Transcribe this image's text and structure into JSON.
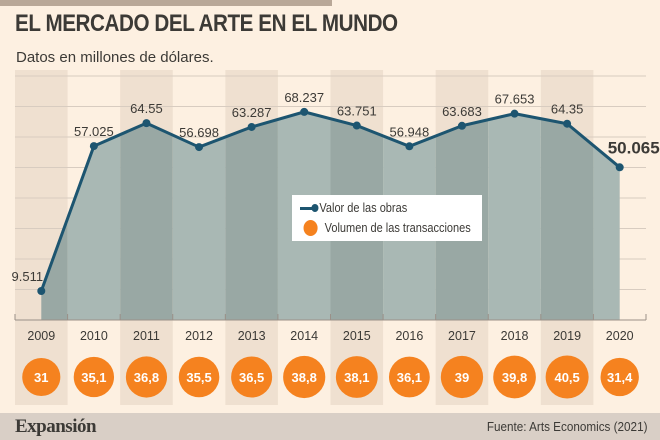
{
  "header": {
    "title": "EL MERCADO DEL ARTE EN EL MUNDO",
    "subtitle": "Datos en millones de dólares."
  },
  "legend": {
    "line_label": "Valor de las obras",
    "dot_label": "Volumen de las transacciones"
  },
  "footer": {
    "brand": "Expansión",
    "source": "Fuente: Arts Economics (2021)"
  },
  "colors": {
    "background": "#fdf0e1",
    "column_alt": "#efe0d0",
    "area": "#a9b8b4",
    "area_alt": "#99a8a4",
    "line": "#1d5570",
    "bubble": "#f5821f",
    "text": "#3c3a36"
  },
  "chart_data": {
    "type": "line",
    "title": "EL MERCADO DEL ARTE EN EL MUNDO",
    "subtitle": "Datos en millones de dólares.",
    "xlabel": "",
    "ylabel": "",
    "ylim": [
      0,
      80
    ],
    "grid": true,
    "legend_position": "center",
    "categories": [
      "2009",
      "2010",
      "2011",
      "2012",
      "2013",
      "2014",
      "2015",
      "2016",
      "2017",
      "2018",
      "2019",
      "2020"
    ],
    "series": [
      {
        "name": "Valor de las obras",
        "type": "area-line",
        "values": [
          9.511,
          57.025,
          64.55,
          56.698,
          63.287,
          68.237,
          63.751,
          56.948,
          63.683,
          67.653,
          64.35,
          50.065
        ],
        "labels": [
          "9.511",
          "57.025",
          "64.55",
          "56.698",
          "63.287",
          "68.237",
          "63.751",
          "56.948",
          "63.683",
          "67.653",
          "64.35",
          "50.065"
        ]
      },
      {
        "name": "Volumen de las transacciones",
        "type": "bubble",
        "values": [
          31,
          35.1,
          36.8,
          35.5,
          36.5,
          38.8,
          38.1,
          36.1,
          39,
          39.8,
          40.5,
          31.4
        ],
        "labels": [
          "31",
          "35,1",
          "36,8",
          "35,5",
          "36,5",
          "38,8",
          "38,1",
          "36,1",
          "39",
          "39,8",
          "40,5",
          "31,4"
        ]
      }
    ]
  }
}
